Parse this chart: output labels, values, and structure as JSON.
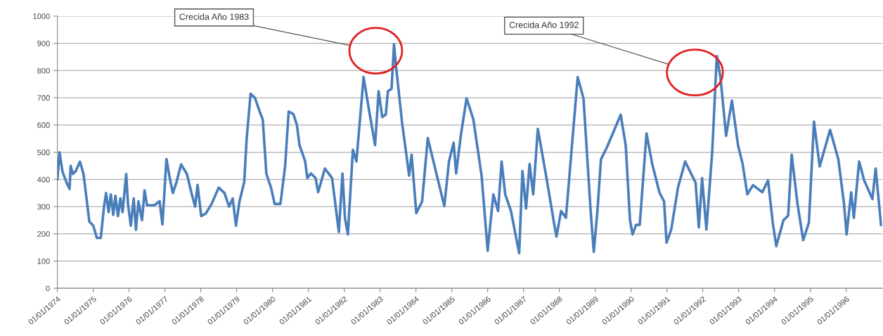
{
  "chart_data": {
    "type": "line",
    "color": "#4a7ebb",
    "x": [
      "1974-01-01",
      "1974-01-23",
      "1974-02-21",
      "1974-04-02",
      "1974-05-05",
      "1974-05-16",
      "1974-06-07",
      "1974-07-06",
      "1974-08-19",
      "1974-09-24",
      "1974-11-04",
      "1974-11-22",
      "1975-01-01",
      "1975-02-07",
      "1975-03-19",
      "1975-04-21",
      "1975-05-12",
      "1975-06-07",
      "1975-06-29",
      "1975-07-24",
      "1975-08-15",
      "1975-09-10",
      "1975-10-05",
      "1975-10-27",
      "1975-12-03",
      "1975-12-21",
      "1976-01-19",
      "1976-02-17",
      "1976-03-11",
      "1976-04-06",
      "1976-05-12",
      "1976-06-07",
      "1976-07-02",
      "1976-09-14",
      "1976-11-07",
      "1976-12-06",
      "1977-01-16",
      "1977-02-21",
      "1977-03-22",
      "1977-04-28",
      "1977-06-14",
      "1977-08-12",
      "1977-09-28",
      "1977-11-04",
      "1977-11-29",
      "1978-01-05",
      "1978-02-21",
      "1978-04-21",
      "1978-07-02",
      "1978-08-30",
      "1978-10-16",
      "1978-11-22",
      "1978-12-25",
      "1979-01-30",
      "1979-03-19",
      "1979-04-13",
      "1979-05-23",
      "1979-07-06",
      "1979-08-23",
      "1979-09-24",
      "1979-10-31",
      "1979-12-17",
      "1980-01-23",
      "1980-03-22",
      "1980-05-09",
      "1980-06-14",
      "1980-08-01",
      "1980-09-06",
      "1980-10-02",
      "1980-11-29",
      "1980-12-21",
      "1981-01-27",
      "1981-03-15",
      "1981-04-10",
      "1981-06-18",
      "1981-08-30",
      "1981-11-07",
      "1981-12-14",
      "1982-01-08",
      "1982-02-07",
      "1982-03-30",
      "1982-05-05",
      "1982-07-17",
      "1982-09-14",
      "1982-11-11",
      "1982-12-17",
      "1983-01-23",
      "1983-02-28",
      "1983-03-22",
      "1983-04-28",
      "1983-05-23",
      "1983-06-14",
      "1983-08-12",
      "1983-10-24",
      "1983-11-18",
      "1984-01-05",
      "1984-03-04",
      "1984-05-01",
      "1984-10-16",
      "1984-12-03",
      "1985-01-19",
      "1985-02-14",
      "1985-04-02",
      "1985-05-31",
      "1985-08-08",
      "1985-10-31",
      "1986-01-01",
      "1986-02-28",
      "1986-04-17",
      "1986-05-23",
      "1986-06-29",
      "1986-08-26",
      "1986-11-18",
      "1986-12-21",
      "1987-01-27",
      "1987-03-04",
      "1987-04-10",
      "1987-05-27",
      "1987-08-19",
      "1987-11-11",
      "1987-12-03",
      "1988-01-19",
      "1988-03-08",
      "1988-07-06",
      "1988-09-03",
      "1988-11-15",
      "1988-12-17",
      "1989-01-23",
      "1989-02-28",
      "1989-04-28",
      "1989-06-29",
      "1989-09-17",
      "1989-11-07",
      "1989-12-21",
      "1990-01-16",
      "1990-02-21",
      "1990-03-30",
      "1990-06-07",
      "1990-08-04",
      "1990-10-16",
      "1990-12-03",
      "1990-12-28",
      "1991-02-14",
      "1991-04-24",
      "1991-07-06",
      "1991-09-14",
      "1991-10-20",
      "1991-11-22",
      "1991-12-25",
      "1992-02-07",
      "1992-04-06",
      "1992-05-23",
      "1992-06-29",
      "1992-08-26",
      "1992-10-24",
      "1992-12-25",
      "1993-02-10",
      "1993-03-30",
      "1993-05-27",
      "1993-08-30",
      "1993-10-27",
      "1993-12-14",
      "1994-01-19",
      "1994-04-02",
      "1994-05-20",
      "1994-06-25",
      "1994-08-23",
      "1994-10-20",
      "1994-12-17",
      "1995-02-07",
      "1995-04-06",
      "1995-07-21",
      "1995-10-13",
      "1995-12-10",
      "1996-01-05",
      "1996-02-21",
      "1996-03-19",
      "1996-05-12",
      "1996-07-02",
      "1996-09-24",
      "1996-10-27",
      "1996-12-21"
    ],
    "values": [
      400,
      500,
      430,
      390,
      365,
      450,
      420,
      430,
      465,
      420,
      300,
      245,
      230,
      185,
      185,
      300,
      350,
      280,
      345,
      270,
      340,
      265,
      330,
      280,
      420,
      310,
      230,
      330,
      215,
      320,
      250,
      360,
      305,
      305,
      320,
      235,
      475,
      400,
      350,
      390,
      455,
      420,
      350,
      300,
      380,
      265,
      275,
      310,
      370,
      350,
      300,
      330,
      230,
      320,
      390,
      550,
      715,
      700,
      650,
      620,
      420,
      370,
      310,
      310,
      450,
      650,
      640,
      600,
      526,
      466,
      405,
      422,
      405,
      353,
      440,
      405,
      207,
      422,
      259,
      198,
      509,
      466,
      776,
      647,
      526,
      724,
      629,
      638,
      724,
      733,
      897,
      810,
      612,
      414,
      491,
      276,
      319,
      552,
      302,
      466,
      535,
      422,
      560,
      698,
      621,
      414,
      138,
      345,
      284,
      466,
      345,
      284,
      129,
      431,
      293,
      457,
      345,
      586,
      414,
      233,
      190,
      284,
      259,
      776,
      698,
      284,
      134,
      284,
      474,
      517,
      569,
      638,
      526,
      250,
      198,
      233,
      233,
      569,
      457,
      353,
      319,
      168,
      216,
      371,
      466,
      414,
      388,
      224,
      405,
      216,
      500,
      853,
      776,
      560,
      690,
      526,
      457,
      345,
      379,
      353,
      397,
      241,
      155,
      250,
      267,
      491,
      310,
      177,
      241,
      612,
      448,
      582,
      474,
      310,
      198,
      353,
      259,
      466,
      397,
      328,
      440,
      233
    ],
    "xlim": [
      "1974-01-01",
      "1997-01-01"
    ],
    "xticks": [
      {
        "value": "1974-01-01",
        "label": "01/01/1974"
      },
      {
        "value": "1975-01-01",
        "label": "01/01/1975"
      },
      {
        "value": "1976-01-01",
        "label": "01/01/1976"
      },
      {
        "value": "1977-01-01",
        "label": "01/01/1977"
      },
      {
        "value": "1978-01-01",
        "label": "01/01/1978"
      },
      {
        "value": "1979-01-01",
        "label": "01/01/1979"
      },
      {
        "value": "1980-01-01",
        "label": "01/01/1980"
      },
      {
        "value": "1981-01-01",
        "label": "01/01/1981"
      },
      {
        "value": "1982-01-01",
        "label": "01/01/1982"
      },
      {
        "value": "1983-01-01",
        "label": "01/01/1983"
      },
      {
        "value": "1984-01-01",
        "label": "01/01/1984"
      },
      {
        "value": "1985-01-01",
        "label": "01/01/1985"
      },
      {
        "value": "1986-01-01",
        "label": "01/01/1986"
      },
      {
        "value": "1987-01-01",
        "label": "01/01/1987"
      },
      {
        "value": "1988-01-01",
        "label": "01/01/1988"
      },
      {
        "value": "1989-01-01",
        "label": "01/01/1989"
      },
      {
        "value": "1990-01-01",
        "label": "01/01/1990"
      },
      {
        "value": "1991-01-01",
        "label": "01/01/1991"
      },
      {
        "value": "1992-01-01",
        "label": "01/01/1992"
      },
      {
        "value": "1993-01-01",
        "label": "01/01/1993"
      },
      {
        "value": "1994-01-01",
        "label": "01/01/1994"
      },
      {
        "value": "1995-01-01",
        "label": "01/01/1995"
      },
      {
        "value": "1996-01-01",
        "label": "01/01/1996"
      }
    ],
    "ylim": [
      0,
      1000
    ],
    "yticks": [
      0,
      100,
      200,
      300,
      400,
      500,
      600,
      700,
      800,
      900,
      1000
    ],
    "grid": "y",
    "marker": "none",
    "line_style": "solid",
    "annotations": [
      "Crecida Año 1983",
      "Crecida Año 1992"
    ]
  }
}
